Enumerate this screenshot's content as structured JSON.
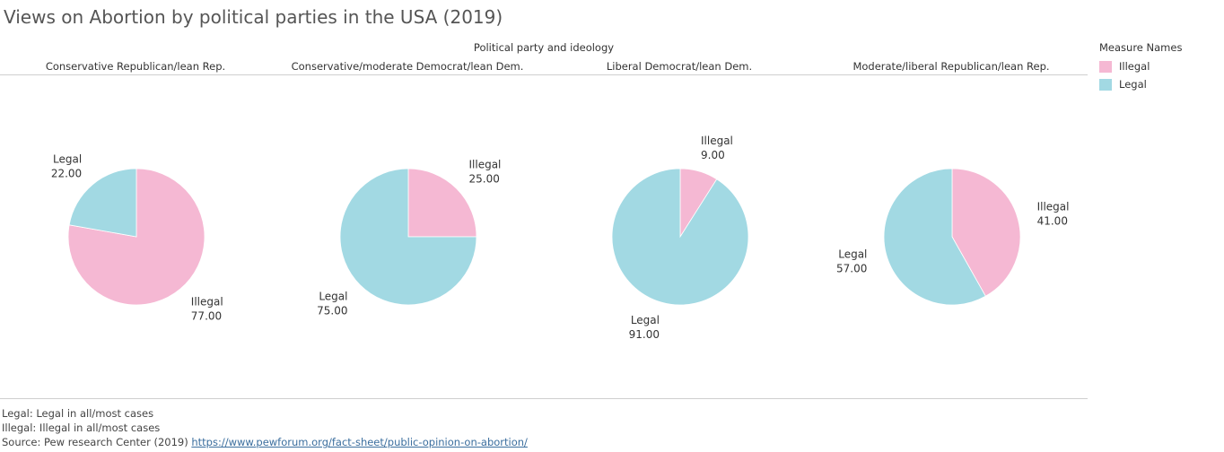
{
  "title": "Views on Abortion by political parties in the USA (2019)",
  "header": {
    "column_title": "Political party and ideology"
  },
  "legend": {
    "title": "Measure Names",
    "items": [
      {
        "label": "Illegal",
        "color": "#f5b8d3"
      },
      {
        "label": "Legal",
        "color": "#a2d9e3"
      }
    ]
  },
  "chart_data": {
    "type": "pie",
    "title": "Views on Abortion by political parties in the USA (2019)",
    "facet_label": "Political party and ideology",
    "legend_title": "Measure Names",
    "legend_position": "right",
    "measures": [
      "Illegal",
      "Legal"
    ],
    "colors": {
      "Illegal": "#f5b8d3",
      "Legal": "#a2d9e3"
    },
    "pies": [
      {
        "party": "Conservative Republican/lean Rep.",
        "slices": [
          {
            "name": "Illegal",
            "value": 77.0,
            "label": "77.00"
          },
          {
            "name": "Legal",
            "value": 22.0,
            "label": "22.00"
          }
        ]
      },
      {
        "party": "Conservative/moderate Democrat/lean Dem.",
        "slices": [
          {
            "name": "Illegal",
            "value": 25.0,
            "label": "25.00"
          },
          {
            "name": "Legal",
            "value": 75.0,
            "label": "75.00"
          }
        ]
      },
      {
        "party": "Liberal Democrat/lean Dem.",
        "slices": [
          {
            "name": "Illegal",
            "value": 9.0,
            "label": "9.00"
          },
          {
            "name": "Legal",
            "value": 91.0,
            "label": "91.00"
          }
        ]
      },
      {
        "party": "Moderate/liberal Republican/lean Rep.",
        "slices": [
          {
            "name": "Illegal",
            "value": 41.0,
            "label": "41.00"
          },
          {
            "name": "Legal",
            "value": 57.0,
            "label": "57.00"
          }
        ]
      }
    ]
  },
  "footer": {
    "note_legal": "Legal: Legal in all/most cases",
    "note_illegal": "Illegal: Illegal in all/most cases",
    "source_prefix": "Source: Pew research Center (2019) ",
    "source_link": "https://www.pewforum.org/fact-sheet/public-opinion-on-abortion/"
  }
}
